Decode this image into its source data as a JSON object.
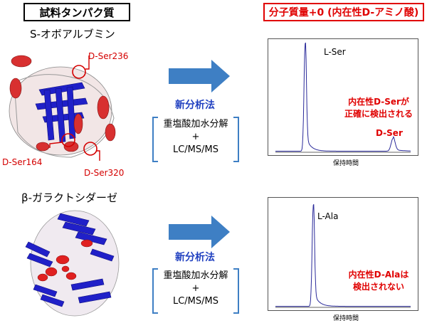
{
  "header": {
    "left_title": "試料タンパク質",
    "right_title": "分子質量+0 (内在性D-アミノ酸)"
  },
  "panel1": {
    "protein_name": "S-オボアルブミン",
    "sites": [
      "D-Ser236",
      "D-Ser164",
      "D-Ser320"
    ],
    "method_title": "新分析法",
    "method_lines": [
      "重塩酸加水分解",
      "+",
      "LC/MS/MS"
    ],
    "annotation_line1": "内在性D-Serが",
    "annotation_line2": "正確に検出される"
  },
  "panel2": {
    "protein_name": "β-ガラクトシダーゼ",
    "method_title": "新分析法",
    "method_lines": [
      "重塩酸加水分解",
      "+",
      "LC/MS/MS"
    ],
    "annotation_line1": "内在性D-Alaは",
    "annotation_line2": "検出されない"
  },
  "chart_data": [
    {
      "type": "line",
      "xlabel": "保持時間",
      "ylabel": "",
      "peaks": [
        {
          "label": "L-Ser",
          "relative_height": 1.0,
          "position": 0.22
        },
        {
          "label": "D-Ser",
          "relative_height": 0.12,
          "position": 0.87
        }
      ],
      "colors": {
        "trace": "#2a2a9a"
      }
    },
    {
      "type": "line",
      "xlabel": "保持時間",
      "ylabel": "",
      "peaks": [
        {
          "label": "L-Ala",
          "relative_height": 1.0,
          "position": 0.28
        }
      ],
      "colors": {
        "trace": "#2a2a9a"
      }
    }
  ],
  "colors": {
    "arrow": "#3e7fc4",
    "method_text": "#1f3fc0",
    "red": "#e00000",
    "helix": "#d83030",
    "sheet": "#2020c8"
  }
}
